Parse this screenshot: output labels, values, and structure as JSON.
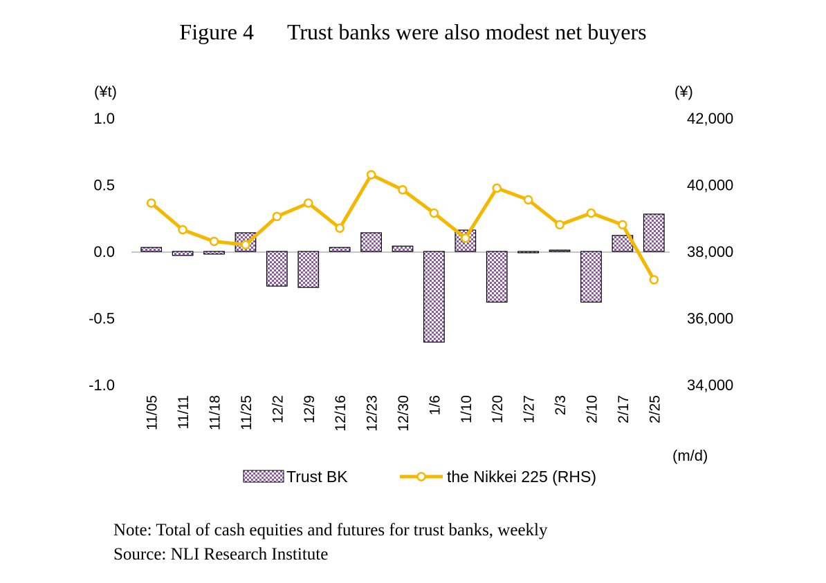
{
  "figure": {
    "number": "Figure 4",
    "title": "Trust banks were also modest net buyers"
  },
  "chart_data": {
    "type": "bar",
    "categories": [
      "11/05",
      "11/11",
      "11/18",
      "11/25",
      "12/2",
      "12/9",
      "12/16",
      "12/23",
      "12/30",
      "1/6",
      "1/10",
      "1/20",
      "1/27",
      "2/3",
      "2/10",
      "2/17",
      "2/25"
    ],
    "xlabel": "(m/d)",
    "ylabel_left": "(¥t)",
    "ylabel_right": "(¥)",
    "ylim_left": [
      -1.0,
      1.0
    ],
    "ylim_right": [
      34000,
      42000
    ],
    "yticks_left": [
      "1.0",
      "0.5",
      "0.0",
      "-0.5",
      "-1.0"
    ],
    "yticks_right": [
      "42,000",
      "40,000",
      "38,000",
      "36,000",
      "34,000"
    ],
    "grid": false,
    "legend_position": "bottom",
    "series": [
      {
        "name": "Trust BK",
        "type": "bar",
        "axis": "left",
        "color": "#8a5aa8",
        "pattern": "checkered",
        "values": [
          0.03,
          -0.03,
          -0.02,
          0.14,
          -0.26,
          -0.27,
          0.03,
          0.14,
          0.04,
          -0.68,
          0.16,
          -0.38,
          -0.01,
          0.01,
          -0.38,
          0.12,
          0.28
        ]
      },
      {
        "name": "the Nikkei 225 (RHS)",
        "type": "line",
        "axis": "right",
        "color": "#f5b800",
        "values": [
          39450,
          38650,
          38300,
          38200,
          39050,
          39450,
          38700,
          40300,
          39850,
          39150,
          38400,
          39900,
          39550,
          38800,
          39150,
          38800,
          37150
        ]
      }
    ]
  },
  "notes": {
    "note": "Note: Total of cash equities and futures for trust banks, weekly",
    "source": "Source: NLI Research Institute"
  }
}
